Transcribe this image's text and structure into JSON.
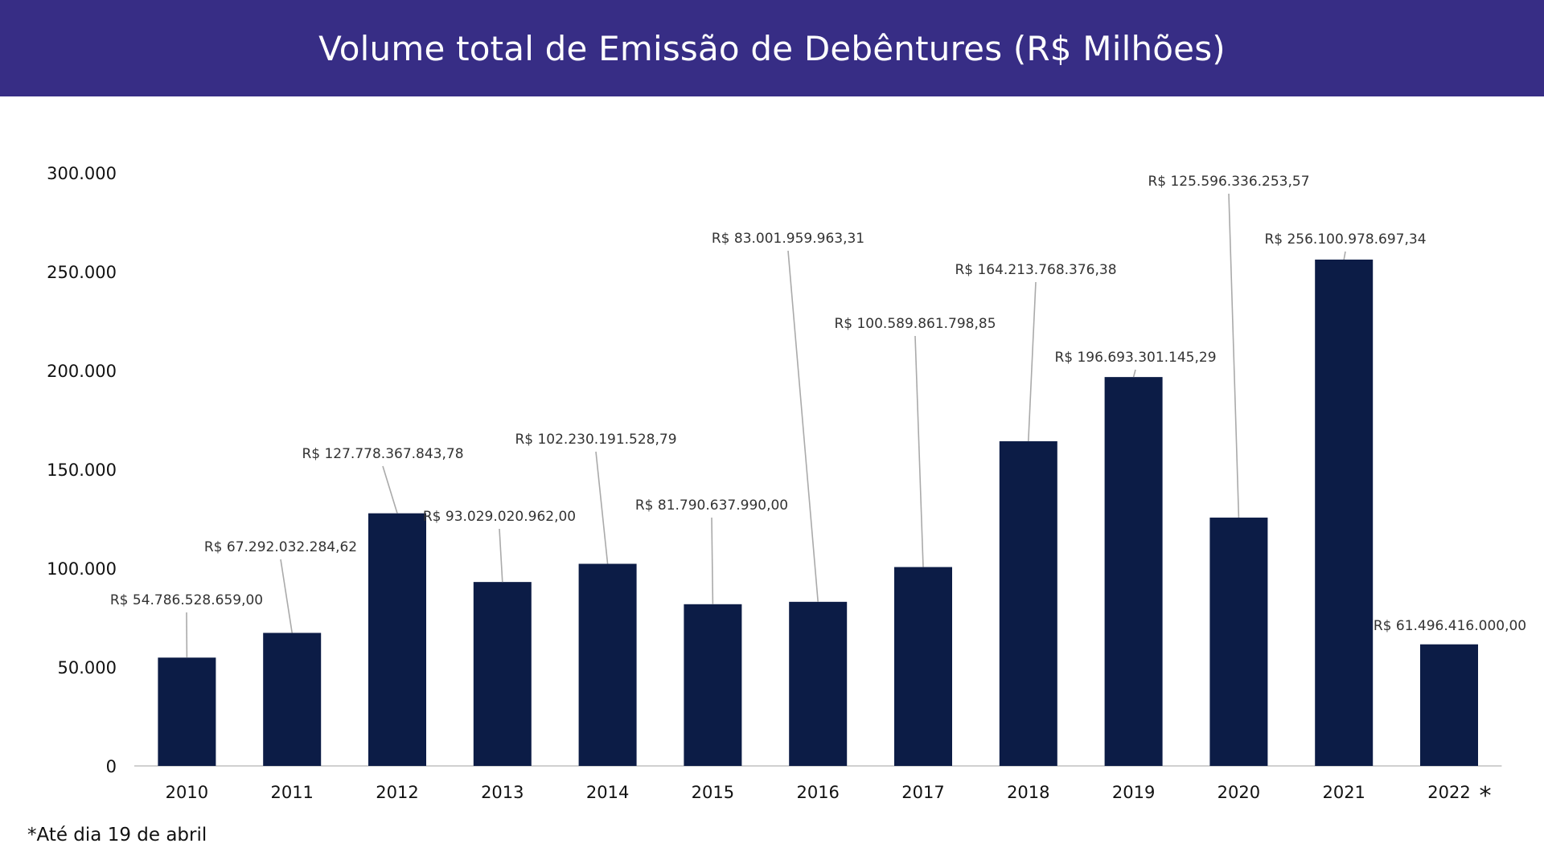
{
  "header": {
    "title": "Volume total de Emissão de Debêntures (R$ Milhões)"
  },
  "footnote": "*Até dia 19 de abril",
  "colors": {
    "header_bg": "#372d85",
    "bar": "#0c1c46",
    "leader": "#aaaaaa",
    "axis": "#d0d0d0"
  },
  "chart_data": {
    "type": "bar",
    "categories": [
      "2010",
      "2011",
      "2012",
      "2013",
      "2014",
      "2015",
      "2016",
      "2017",
      "2018",
      "2019",
      "2020",
      "2021",
      "2022"
    ],
    "category_marks": [
      "",
      "",
      "",
      "",
      "",
      "",
      "",
      "",
      "",
      "",
      "",
      "",
      "*"
    ],
    "values": [
      54786.528659,
      67292.03228462,
      127778.36784378,
      93029.020962,
      102230.19152879,
      81790.63799,
      83001.95996331,
      100589.86179885,
      164213.76837638,
      196693.30114529,
      125596.33625357,
      256100.97869734,
      61496.416
    ],
    "data_labels": [
      "R$ 54.786.528.659,00",
      "R$ 67.292.032.284,62",
      "R$ 127.778.367.843,78",
      "R$ 93.029.020.962,00",
      "R$ 102.230.191.528,79",
      "R$ 81.790.637.990,00",
      "R$ 83.001.959.963,31",
      "R$ 100.589.861.798,85",
      "R$ 164.213.768.376,38",
      "R$ 196.693.301.145,29",
      "R$ 125.596.336.253,57",
      "R$ 256.100.978.697,34",
      "R$ 61.496.416.000,00"
    ],
    "yticks": [
      0,
      50000,
      100000,
      150000,
      200000,
      250000,
      300000
    ],
    "ytick_labels": [
      "0",
      "50.000",
      "100.000",
      "150.000",
      "200.000",
      "250.000",
      "300.000"
    ],
    "ylim": [
      0,
      300000
    ],
    "grid": false,
    "legend": "none"
  }
}
